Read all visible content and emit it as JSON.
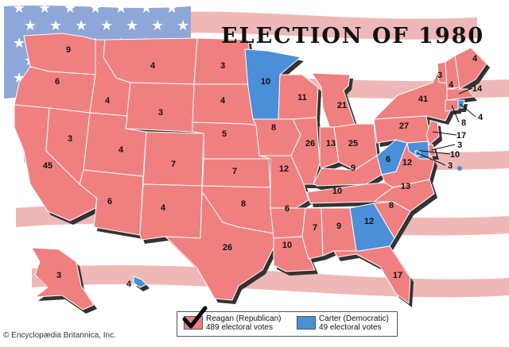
{
  "title": "ELECTION OF 1980",
  "colors": {
    "reagan": "#f08080",
    "carter": "#4a8fd8",
    "border": "#ffffff",
    "shadow": "#333333",
    "flag_stripe": "#e9a0a0",
    "flag_canton": "#8fa6d8"
  },
  "states": [
    {
      "abbr": "WA",
      "votes": "9",
      "winner": "reagan"
    },
    {
      "abbr": "OR",
      "votes": "6",
      "winner": "reagan"
    },
    {
      "abbr": "CA",
      "votes": "45",
      "winner": "reagan"
    },
    {
      "abbr": "NV",
      "votes": "3",
      "winner": "reagan"
    },
    {
      "abbr": "ID",
      "votes": "4",
      "winner": "reagan"
    },
    {
      "abbr": "MT",
      "votes": "4",
      "winner": "reagan"
    },
    {
      "abbr": "WY",
      "votes": "3",
      "winner": "reagan"
    },
    {
      "abbr": "UT",
      "votes": "4",
      "winner": "reagan"
    },
    {
      "abbr": "AZ",
      "votes": "6",
      "winner": "reagan"
    },
    {
      "abbr": "CO",
      "votes": "7",
      "winner": "reagan"
    },
    {
      "abbr": "NM",
      "votes": "4",
      "winner": "reagan"
    },
    {
      "abbr": "ND",
      "votes": "3",
      "winner": "reagan"
    },
    {
      "abbr": "SD",
      "votes": "4",
      "winner": "reagan"
    },
    {
      "abbr": "NE",
      "votes": "5",
      "winner": "reagan"
    },
    {
      "abbr": "KS",
      "votes": "7",
      "winner": "reagan"
    },
    {
      "abbr": "OK",
      "votes": "8",
      "winner": "reagan"
    },
    {
      "abbr": "TX",
      "votes": "26",
      "winner": "reagan"
    },
    {
      "abbr": "MN",
      "votes": "10",
      "winner": "carter"
    },
    {
      "abbr": "IA",
      "votes": "8",
      "winner": "reagan"
    },
    {
      "abbr": "MO",
      "votes": "12",
      "winner": "reagan"
    },
    {
      "abbr": "AR",
      "votes": "6",
      "winner": "reagan"
    },
    {
      "abbr": "LA",
      "votes": "10",
      "winner": "reagan"
    },
    {
      "abbr": "WI",
      "votes": "11",
      "winner": "reagan"
    },
    {
      "abbr": "IL",
      "votes": "26",
      "winner": "reagan"
    },
    {
      "abbr": "MI",
      "votes": "21",
      "winner": "reagan"
    },
    {
      "abbr": "IN",
      "votes": "13",
      "winner": "reagan"
    },
    {
      "abbr": "OH",
      "votes": "25",
      "winner": "reagan"
    },
    {
      "abbr": "KY",
      "votes": "9",
      "winner": "reagan"
    },
    {
      "abbr": "TN",
      "votes": "10",
      "winner": "reagan"
    },
    {
      "abbr": "MS",
      "votes": "7",
      "winner": "reagan"
    },
    {
      "abbr": "AL",
      "votes": "9",
      "winner": "reagan"
    },
    {
      "abbr": "GA",
      "votes": "12",
      "winner": "carter"
    },
    {
      "abbr": "FL",
      "votes": "17",
      "winner": "reagan"
    },
    {
      "abbr": "SC",
      "votes": "8",
      "winner": "reagan"
    },
    {
      "abbr": "NC",
      "votes": "13",
      "winner": "reagan"
    },
    {
      "abbr": "VA",
      "votes": "12",
      "winner": "reagan"
    },
    {
      "abbr": "WV",
      "votes": "6",
      "winner": "carter"
    },
    {
      "abbr": "PA",
      "votes": "27",
      "winner": "reagan"
    },
    {
      "abbr": "NY",
      "votes": "41",
      "winner": "reagan"
    },
    {
      "abbr": "VT",
      "votes": "3",
      "winner": "reagan"
    },
    {
      "abbr": "NH",
      "votes": "4",
      "winner": "reagan"
    },
    {
      "abbr": "ME",
      "votes": "4",
      "winner": "reagan"
    },
    {
      "abbr": "MA",
      "votes": "14",
      "winner": "reagan"
    },
    {
      "abbr": "RI",
      "votes": "4",
      "winner": "carter"
    },
    {
      "abbr": "CT",
      "votes": "8",
      "winner": "reagan"
    },
    {
      "abbr": "NJ",
      "votes": "17",
      "winner": "reagan"
    },
    {
      "abbr": "DE",
      "votes": "3",
      "winner": "reagan"
    },
    {
      "abbr": "MD",
      "votes": "10",
      "winner": "carter"
    },
    {
      "abbr": "DC",
      "votes": "3",
      "winner": "carter"
    },
    {
      "abbr": "AK",
      "votes": "3",
      "winner": "reagan"
    },
    {
      "abbr": "HI",
      "votes": "4",
      "winner": "carter"
    }
  ],
  "legend": {
    "reagan": {
      "name": "Reagan (Republican)",
      "votes": "489 electoral votes"
    },
    "carter": {
      "name": "Carter (Democratic)",
      "votes": "49 electoral votes"
    }
  },
  "credit": "© Encyclopædia Britannica, Inc."
}
